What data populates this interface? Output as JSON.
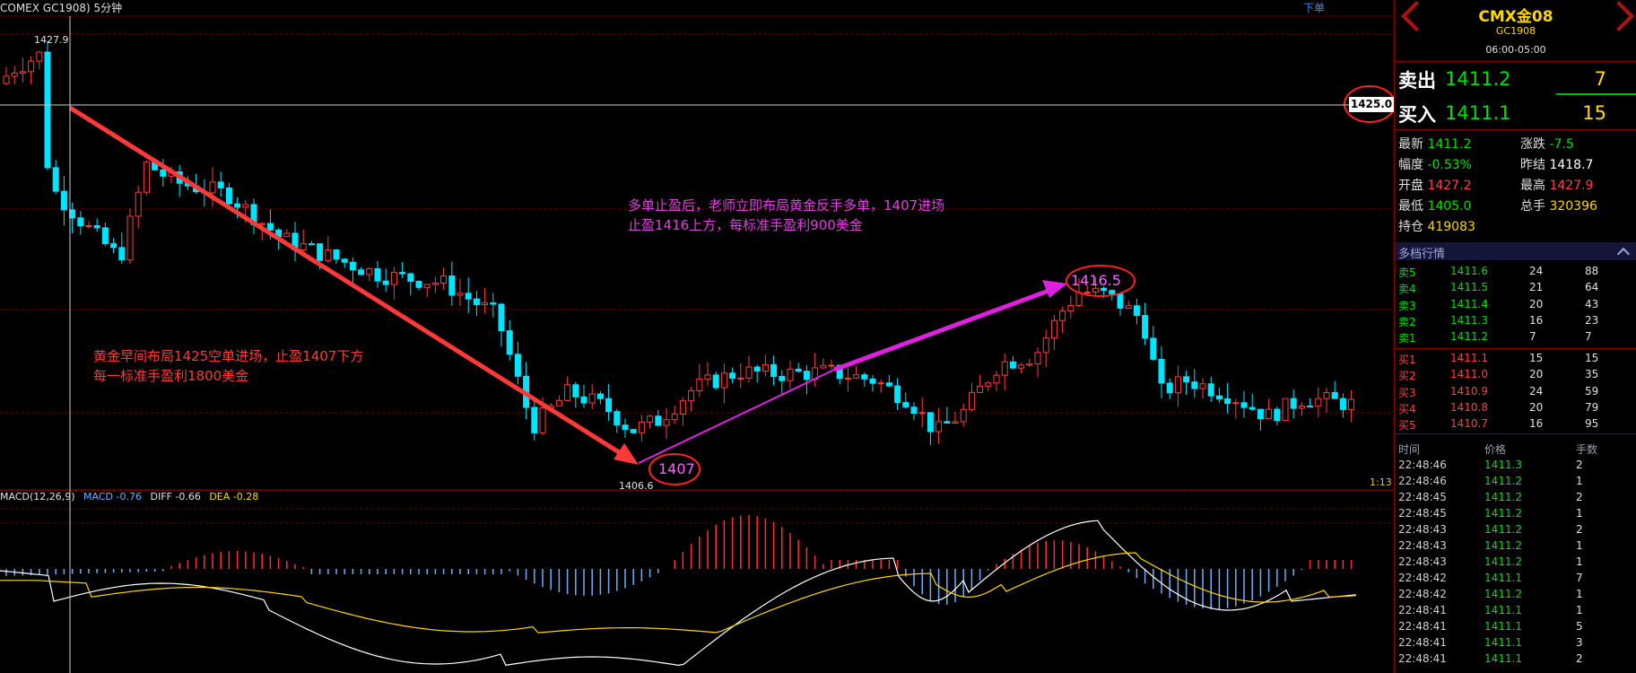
{
  "chart": {
    "title": "COMEX GC1908) 5分钟",
    "title_right": "下单",
    "high_label": "1427.9",
    "low_label": "1406.6",
    "price_tag": "1425.0",
    "time_small": "1:13",
    "circle_low": "1407",
    "circle_high": "1416.5",
    "annotation_top": [
      "多单止盈后，老师立即布局黄金反手多单，1407进场",
      "止盈1416上方，每标准手盈利900美金"
    ],
    "annotation_left": [
      "黄金早间布局1425空单进场，止盈1407下方",
      "每一标准手盈利1800美金"
    ],
    "colors": {
      "up": "#ff3b3b",
      "down": "#00e5ff",
      "macd_pos": "#ff3030",
      "macd_neg": "#6ab0ff",
      "diff": "#ffffff",
      "dea": "#ffd700",
      "arrow_red": "#ff3838",
      "arrow_magenta": "#e020e0"
    }
  },
  "macd": {
    "label": "MACD(12,26,9)",
    "macd": "MACD -0.76",
    "diff": "DIFF -0.66",
    "dea": "DEA -0.28"
  },
  "panel": {
    "name": "CMX金08",
    "code": "GC1908",
    "hours": "06:00-05:00",
    "sell_label": "卖出",
    "sell_price": "1411.2",
    "sell_qty": "7",
    "buy_label": "买入",
    "buy_price": "1411.1",
    "buy_qty": "15",
    "stats": [
      {
        "k": "最新",
        "v": "1411.2",
        "c": "#00e000"
      },
      {
        "k": "涨跌",
        "v": "-7.5",
        "c": "#00e000"
      },
      {
        "k": "幅度",
        "v": "-0.53%",
        "c": "#00e000"
      },
      {
        "k": "昨结",
        "v": "1418.7",
        "c": "#ffffff"
      },
      {
        "k": "开盘",
        "v": "1427.2",
        "c": "#ff4040"
      },
      {
        "k": "最高",
        "v": "1427.9",
        "c": "#ff4040"
      },
      {
        "k": "最低",
        "v": "1405.0",
        "c": "#00e000"
      },
      {
        "k": "总手",
        "v": "320396",
        "c": "#ffd700"
      },
      {
        "k": "持仓",
        "v": "419083",
        "c": "#ffd700"
      }
    ],
    "depth_title": "多档行情",
    "sells": [
      {
        "label": "卖5",
        "price": "1411.6",
        "qty": "24",
        "total": "88"
      },
      {
        "label": "卖4",
        "price": "1411.5",
        "qty": "21",
        "total": "64"
      },
      {
        "label": "卖3",
        "price": "1411.4",
        "qty": "20",
        "total": "43"
      },
      {
        "label": "卖2",
        "price": "1411.3",
        "qty": "16",
        "total": "23"
      },
      {
        "label": "卖1",
        "price": "1411.2",
        "qty": "7",
        "total": "7"
      }
    ],
    "buys": [
      {
        "label": "买1",
        "price": "1411.1",
        "qty": "15",
        "total": "15"
      },
      {
        "label": "买2",
        "price": "1411.0",
        "qty": "20",
        "total": "35"
      },
      {
        "label": "买3",
        "price": "1410.9",
        "qty": "24",
        "total": "59"
      },
      {
        "label": "买4",
        "price": "1410.8",
        "qty": "20",
        "total": "79"
      },
      {
        "label": "买5",
        "price": "1410.7",
        "qty": "16",
        "total": "95"
      }
    ],
    "trades_header": {
      "time": "时间",
      "price": "价格",
      "qty": "手数"
    },
    "trades": [
      {
        "time": "22:48:46",
        "price": "1411.3",
        "qty": "2"
      },
      {
        "time": "22:48:46",
        "price": "1411.2",
        "qty": "1"
      },
      {
        "time": "22:48:45",
        "price": "1411.2",
        "qty": "2"
      },
      {
        "time": "22:48:45",
        "price": "1411.2",
        "qty": "1"
      },
      {
        "time": "22:48:43",
        "price": "1411.2",
        "qty": "2"
      },
      {
        "time": "22:48:43",
        "price": "1411.2",
        "qty": "1"
      },
      {
        "time": "22:48:43",
        "price": "1411.2",
        "qty": "1"
      },
      {
        "time": "22:48:42",
        "price": "1411.1",
        "qty": "7"
      },
      {
        "time": "22:48:42",
        "price": "1411.2",
        "qty": "1"
      },
      {
        "time": "22:48:41",
        "price": "1411.1",
        "qty": "1"
      },
      {
        "time": "22:48:41",
        "price": "1411.1",
        "qty": "5"
      },
      {
        "time": "22:48:41",
        "price": "1411.1",
        "qty": "3"
      },
      {
        "time": "22:48:41",
        "price": "1411.1",
        "qty": "2"
      }
    ]
  }
}
